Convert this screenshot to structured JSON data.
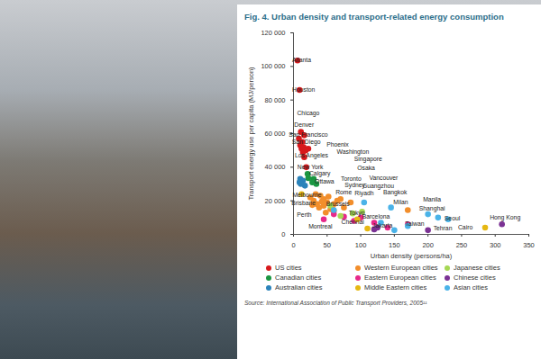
{
  "chart_data": {
    "type": "scatter",
    "title": "Fig. 4. Urban density and transport-related energy consumption",
    "x_label": "Urban density (persons/ha)",
    "y_label": "Transport energy use per capita (MJ/person)",
    "xlim": [
      0,
      350
    ],
    "xticks": [
      0,
      50,
      100,
      150,
      200,
      250,
      300,
      350
    ],
    "ylim": [
      0,
      120000
    ],
    "yticks": [
      0,
      {
        "value": 20000,
        "label": "20 000"
      },
      {
        "value": 40000,
        "label": "40 000"
      },
      {
        "value": 60000,
        "label": "60 000"
      },
      {
        "value": 80000,
        "label": "80 000"
      },
      {
        "value": 100000,
        "label": "100 000"
      },
      {
        "value": 120000,
        "label": "120 000"
      }
    ],
    "grid": false,
    "legend": "bottom",
    "marker": "circle",
    "source": "Source: International Association of Public Transport Providers, 2005¹¹",
    "series": [
      {
        "name": "US cities",
        "color": "#d7191c",
        "points": [
          {
            "x": 6,
            "y": 103500,
            "label": "Atlanta"
          },
          {
            "x": 9,
            "y": 86000,
            "label": "Houston"
          },
          {
            "x": 11,
            "y": 61000,
            "label": "Denver"
          },
          {
            "x": 16,
            "y": 59000,
            "label": "San Francisco"
          },
          {
            "x": 13,
            "y": 55000,
            "label": "San Diego"
          },
          {
            "x": 10,
            "y": 53000,
            "label": "Phoenix"
          },
          {
            "x": 22,
            "y": 51000,
            "label": "Los Angeles"
          },
          {
            "x": 14,
            "y": 49000,
            "label": "Washington"
          },
          {
            "x": 16,
            "y": 46000,
            "label": "Chicago"
          },
          {
            "x": 19,
            "y": 40000,
            "label": "New York"
          },
          {
            "x": 8,
            "y": 57000
          },
          {
            "x": 12,
            "y": 51000
          },
          {
            "x": 15,
            "y": 52000
          },
          {
            "x": 18,
            "y": 50000
          }
        ]
      },
      {
        "name": "Canadian cities",
        "color": "#1a9641",
        "points": [
          {
            "x": 21,
            "y": 36000,
            "label": "Calgary"
          },
          {
            "x": 30,
            "y": 33000,
            "label": "Toronto"
          },
          {
            "x": 28,
            "y": 31000,
            "label": "Ottawa"
          },
          {
            "x": 22,
            "y": 33500,
            "label": "Vancouver"
          },
          {
            "x": 34,
            "y": 30000,
            "label": "Montreal"
          }
        ]
      },
      {
        "name": "Australian cities",
        "color": "#2b83ba",
        "points": [
          {
            "x": 10,
            "y": 33000,
            "label": "Perth"
          },
          {
            "x": 14,
            "y": 32000,
            "label": "Melbourne"
          },
          {
            "x": 9,
            "y": 31000,
            "label": "Brisbane"
          },
          {
            "x": 17,
            "y": 29000,
            "label": "Sydney"
          },
          {
            "x": 11,
            "y": 30000
          }
        ]
      },
      {
        "name": "Western European cities",
        "color": "#f28e2b",
        "points": [
          {
            "x": 70,
            "y": 21000,
            "label": "Rome"
          },
          {
            "x": 85,
            "y": 19000,
            "label": "Milan"
          },
          {
            "x": 60,
            "y": 18000,
            "label": "Brussels"
          },
          {
            "x": 170,
            "y": 14500,
            "label": "Barcelona"
          },
          {
            "x": 25,
            "y": 22000
          },
          {
            "x": 30,
            "y": 20000
          },
          {
            "x": 35,
            "y": 18000
          },
          {
            "x": 40,
            "y": 23000
          },
          {
            "x": 45,
            "y": 17000
          },
          {
            "x": 50,
            "y": 19000
          },
          {
            "x": 55,
            "y": 15000
          },
          {
            "x": 45,
            "y": 21000
          },
          {
            "x": 38,
            "y": 16000
          },
          {
            "x": 60,
            "y": 14000
          },
          {
            "x": 65,
            "y": 20000
          },
          {
            "x": 52,
            "y": 22500
          },
          {
            "x": 33,
            "y": 24000
          },
          {
            "x": 48,
            "y": 13000
          },
          {
            "x": 75,
            "y": 16000
          },
          {
            "x": 28,
            "y": 17500
          },
          {
            "x": 42,
            "y": 19500
          },
          {
            "x": 58,
            "y": 17000
          }
        ]
      },
      {
        "name": "Eastern European cities",
        "color": "#e7298a",
        "points": [
          {
            "x": 45,
            "y": 9000
          },
          {
            "x": 75,
            "y": 10500
          },
          {
            "x": 100,
            "y": 10000
          },
          {
            "x": 120,
            "y": 7000
          },
          {
            "x": 60,
            "y": 12000
          },
          {
            "x": 140,
            "y": 4000
          },
          {
            "x": 170,
            "y": 6000
          },
          {
            "x": 90,
            "y": 8000
          }
        ]
      },
      {
        "name": "Middle Eastern cities",
        "color": "#e6b812",
        "points": [
          {
            "x": 12,
            "y": 24000,
            "label": "Riyadh"
          },
          {
            "x": 110,
            "y": 3500,
            "label": "Tehran"
          },
          {
            "x": 285,
            "y": 4000,
            "label": "Cairo"
          },
          {
            "x": 95,
            "y": 9000
          }
        ]
      },
      {
        "name": "Japanese cities",
        "color": "#a6d854",
        "points": [
          {
            "x": 102,
            "y": 13500,
            "label": "Osaka"
          },
          {
            "x": 88,
            "y": 12500,
            "label": "Tokyo"
          },
          {
            "x": 70,
            "y": 11000
          },
          {
            "x": 55,
            "y": 17000
          }
        ]
      },
      {
        "name": "Chinese cities",
        "color": "#7b3294",
        "points": [
          {
            "x": 120,
            "y": 3000,
            "label": "Guangzhou"
          },
          {
            "x": 200,
            "y": 2500,
            "label": "Shanghai"
          },
          {
            "x": 310,
            "y": 6000,
            "label": "Hong Kong"
          },
          {
            "x": 125,
            "y": 4000
          }
        ]
      },
      {
        "name": "Asian cities",
        "color": "#4ab3e8",
        "points": [
          {
            "x": 105,
            "y": 19000,
            "label": "Singapore"
          },
          {
            "x": 145,
            "y": 16000,
            "label": "Bangkok"
          },
          {
            "x": 200,
            "y": 12000,
            "label": "Manila"
          },
          {
            "x": 215,
            "y": 10000,
            "label": "Taiwan"
          },
          {
            "x": 230,
            "y": 9000,
            "label": "Seoul"
          },
          {
            "x": 130,
            "y": 7000,
            "label": "Chennai"
          },
          {
            "x": 170,
            "y": 5000,
            "label": "Jakarta"
          },
          {
            "x": 60,
            "y": 14500
          },
          {
            "x": 150,
            "y": 2500
          }
        ]
      }
    ]
  }
}
